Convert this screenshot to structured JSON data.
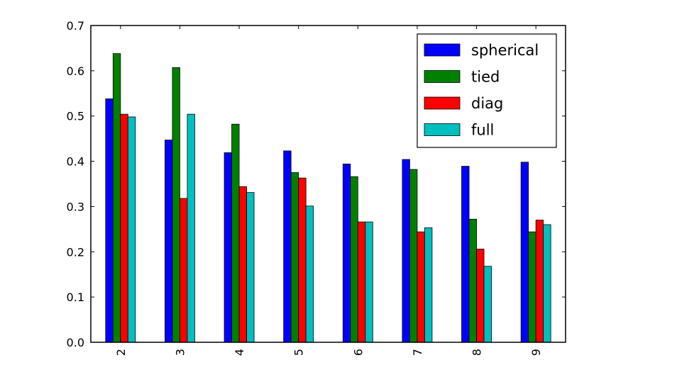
{
  "chart_data": {
    "type": "bar",
    "title": "",
    "xlabel": "",
    "ylabel": "",
    "categories": [
      "2",
      "3",
      "4",
      "5",
      "6",
      "7",
      "8",
      "9"
    ],
    "ylim": [
      0,
      0.7
    ],
    "yticks": [
      "0.0",
      "0.1",
      "0.2",
      "0.3",
      "0.4",
      "0.5",
      "0.6",
      "0.7"
    ],
    "grid": false,
    "legend_position": "top-right",
    "series": [
      {
        "name": "spherical",
        "color": "#0000ff",
        "values": [
          0.538,
          0.447,
          0.419,
          0.423,
          0.394,
          0.404,
          0.389,
          0.398
        ]
      },
      {
        "name": "tied",
        "color": "#008000",
        "values": [
          0.638,
          0.607,
          0.482,
          0.375,
          0.366,
          0.382,
          0.272,
          0.244
        ]
      },
      {
        "name": "diag",
        "color": "#ff0000",
        "values": [
          0.504,
          0.318,
          0.344,
          0.363,
          0.266,
          0.244,
          0.206,
          0.27
        ]
      },
      {
        "name": "full",
        "color": "#00bfbf",
        "values": [
          0.498,
          0.504,
          0.331,
          0.301,
          0.266,
          0.253,
          0.168,
          0.26
        ]
      }
    ]
  }
}
